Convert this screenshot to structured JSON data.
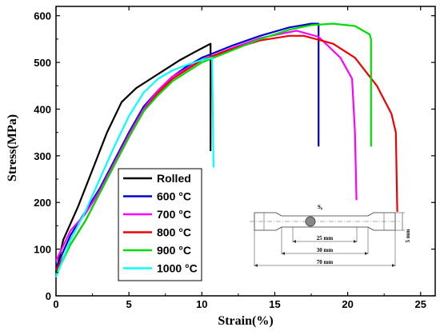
{
  "chart_data": {
    "type": "line",
    "title": "",
    "xlabel": "Strain(%)",
    "ylabel": "Stress(MPa)",
    "xlim": [
      0,
      26
    ],
    "ylim": [
      0,
      620
    ],
    "xticks": [
      0,
      5,
      10,
      15,
      20,
      25
    ],
    "yticks": [
      0,
      100,
      200,
      300,
      400,
      500,
      600
    ],
    "grid": false,
    "legend_position": "lower-left",
    "series": [
      {
        "name": "Rolled",
        "color": "#000000",
        "points": [
          [
            0,
            50
          ],
          [
            0.5,
            120
          ],
          [
            1.5,
            190
          ],
          [
            2.5,
            270
          ],
          [
            3.5,
            350
          ],
          [
            4.5,
            415
          ],
          [
            5.5,
            445
          ],
          [
            6.5,
            465
          ],
          [
            7.5,
            485
          ],
          [
            8.5,
            505
          ],
          [
            9.5,
            522
          ],
          [
            10.6,
            540
          ],
          [
            10.6,
            310
          ]
        ]
      },
      {
        "name": "600 °C",
        "color": "#0000cc",
        "points": [
          [
            0,
            60
          ],
          [
            1,
            130
          ],
          [
            2,
            180
          ],
          [
            3,
            230
          ],
          [
            4,
            290
          ],
          [
            5,
            350
          ],
          [
            6,
            405
          ],
          [
            7,
            440
          ],
          [
            8,
            470
          ],
          [
            9,
            492
          ],
          [
            10,
            510
          ],
          [
            12,
            535
          ],
          [
            14,
            557
          ],
          [
            16,
            575
          ],
          [
            17.5,
            583
          ],
          [
            18,
            583
          ],
          [
            18,
            320
          ]
        ]
      },
      {
        "name": "700 °C",
        "color": "#ff00ff",
        "points": [
          [
            0,
            75
          ],
          [
            1,
            140
          ],
          [
            2,
            175
          ],
          [
            3,
            225
          ],
          [
            4,
            285
          ],
          [
            5,
            345
          ],
          [
            6,
            400
          ],
          [
            7,
            440
          ],
          [
            8,
            470
          ],
          [
            10,
            505
          ],
          [
            12,
            530
          ],
          [
            14,
            552
          ],
          [
            15.5,
            562
          ],
          [
            16.5,
            568
          ],
          [
            18,
            555
          ],
          [
            19.5,
            510
          ],
          [
            20.3,
            465
          ],
          [
            20.5,
            350
          ],
          [
            20.6,
            205
          ]
        ]
      },
      {
        "name": "800 °C",
        "color": "#ee0000",
        "points": [
          [
            0,
            55
          ],
          [
            1,
            110
          ],
          [
            2,
            160
          ],
          [
            3,
            220
          ],
          [
            4,
            280
          ],
          [
            5,
            340
          ],
          [
            6,
            395
          ],
          [
            7,
            435
          ],
          [
            8,
            465
          ],
          [
            10,
            505
          ],
          [
            12,
            528
          ],
          [
            14,
            547
          ],
          [
            16,
            557
          ],
          [
            17,
            557
          ],
          [
            19,
            540
          ],
          [
            20.5,
            510
          ],
          [
            22,
            450
          ],
          [
            23,
            390
          ],
          [
            23.3,
            350
          ],
          [
            23.4,
            180
          ]
        ]
      },
      {
        "name": "900 °C",
        "color": "#00dd00",
        "points": [
          [
            0,
            45
          ],
          [
            1,
            110
          ],
          [
            2,
            160
          ],
          [
            3,
            220
          ],
          [
            4,
            280
          ],
          [
            5,
            340
          ],
          [
            6,
            395
          ],
          [
            7,
            430
          ],
          [
            8,
            460
          ],
          [
            10,
            500
          ],
          [
            12,
            525
          ],
          [
            14,
            550
          ],
          [
            16,
            570
          ],
          [
            17.5,
            580
          ],
          [
            19,
            583
          ],
          [
            20.5,
            578
          ],
          [
            21.5,
            560
          ],
          [
            21.6,
            550
          ],
          [
            21.6,
            320
          ]
        ]
      },
      {
        "name": "1000 °C",
        "color": "#00ffff",
        "points": [
          [
            0,
            40
          ],
          [
            1,
            120
          ],
          [
            2,
            180
          ],
          [
            3,
            250
          ],
          [
            4,
            320
          ],
          [
            5,
            385
          ],
          [
            6,
            435
          ],
          [
            7,
            465
          ],
          [
            8,
            483
          ],
          [
            9,
            495
          ],
          [
            10,
            505
          ],
          [
            10.7,
            510
          ],
          [
            10.8,
            275
          ]
        ]
      }
    ],
    "inset": {
      "labels": [
        "S₀",
        "25 mm",
        "30 mm",
        "70 mm",
        "5 mm"
      ]
    }
  }
}
